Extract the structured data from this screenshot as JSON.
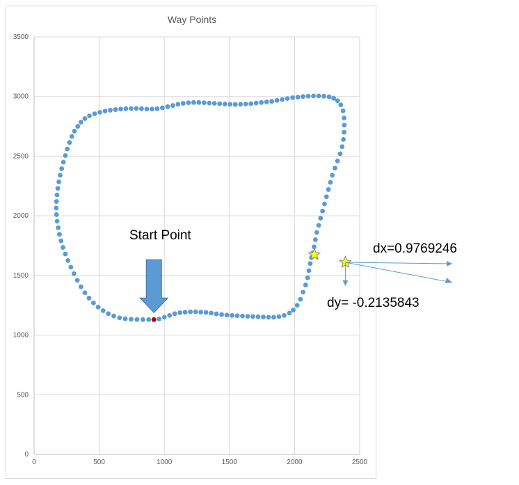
{
  "chart_data": {
    "type": "scatter",
    "title": "Way Points",
    "xlim": [
      0,
      2500
    ],
    "ylim": [
      0,
      3500
    ],
    "x_ticks": [
      "0",
      "500",
      "1000",
      "1500",
      "2000",
      "2500"
    ],
    "y_ticks": [
      "0",
      "500",
      "1000",
      "1500",
      "2000",
      "2500",
      "3000",
      "3500"
    ],
    "grid": true,
    "legend": "none",
    "series": [
      {
        "color": "#5b9bd5",
        "points": [
          [
            920,
            1130
          ],
          [
            960,
            1135
          ],
          [
            1000,
            1150
          ],
          [
            1040,
            1165
          ],
          [
            1080,
            1180
          ],
          [
            1120,
            1188
          ],
          [
            1160,
            1192
          ],
          [
            1200,
            1195
          ],
          [
            1240,
            1195
          ],
          [
            1280,
            1193
          ],
          [
            1320,
            1190
          ],
          [
            1360,
            1185
          ],
          [
            1400,
            1178
          ],
          [
            1440,
            1172
          ],
          [
            1480,
            1168
          ],
          [
            1520,
            1165
          ],
          [
            1560,
            1163
          ],
          [
            1600,
            1160
          ],
          [
            1640,
            1158
          ],
          [
            1680,
            1156
          ],
          [
            1720,
            1154
          ],
          [
            1760,
            1152
          ],
          [
            1800,
            1150
          ],
          [
            1840,
            1150
          ],
          [
            1880,
            1155
          ],
          [
            1920,
            1165
          ],
          [
            1960,
            1185
          ],
          [
            1990,
            1210
          ],
          [
            2020,
            1250
          ],
          [
            2045,
            1300
          ],
          [
            2065,
            1360
          ],
          [
            2085,
            1420
          ],
          [
            2100,
            1480
          ],
          [
            2110,
            1540
          ],
          [
            2120,
            1600
          ],
          [
            2130,
            1650
          ],
          [
            2140,
            1690
          ],
          [
            2150,
            1740
          ],
          [
            2160,
            1800
          ],
          [
            2170,
            1860
          ],
          [
            2185,
            1920
          ],
          [
            2200,
            1980
          ],
          [
            2215,
            2040
          ],
          [
            2230,
            2100
          ],
          [
            2245,
            2160
          ],
          [
            2260,
            2220
          ],
          [
            2275,
            2280
          ],
          [
            2290,
            2340
          ],
          [
            2310,
            2400
          ],
          [
            2330,
            2460
          ],
          [
            2350,
            2520
          ],
          [
            2365,
            2580
          ],
          [
            2375,
            2640
          ],
          [
            2380,
            2700
          ],
          [
            2382,
            2760
          ],
          [
            2380,
            2820
          ],
          [
            2372,
            2880
          ],
          [
            2355,
            2930
          ],
          [
            2330,
            2965
          ],
          [
            2300,
            2985
          ],
          [
            2265,
            2998
          ],
          [
            2225,
            3003
          ],
          [
            2185,
            3005
          ],
          [
            2145,
            3005
          ],
          [
            2105,
            3003
          ],
          [
            2065,
            3000
          ],
          [
            2025,
            2995
          ],
          [
            1985,
            2990
          ],
          [
            1945,
            2983
          ],
          [
            1905,
            2975
          ],
          [
            1865,
            2968
          ],
          [
            1825,
            2960
          ],
          [
            1785,
            2955
          ],
          [
            1745,
            2950
          ],
          [
            1705,
            2945
          ],
          [
            1665,
            2940
          ],
          [
            1625,
            2938
          ],
          [
            1585,
            2935
          ],
          [
            1545,
            2933
          ],
          [
            1505,
            2935
          ],
          [
            1465,
            2938
          ],
          [
            1425,
            2940
          ],
          [
            1385,
            2943
          ],
          [
            1345,
            2945
          ],
          [
            1305,
            2948
          ],
          [
            1265,
            2950
          ],
          [
            1225,
            2950
          ],
          [
            1185,
            2948
          ],
          [
            1145,
            2943
          ],
          [
            1105,
            2935
          ],
          [
            1065,
            2925
          ],
          [
            1025,
            2915
          ],
          [
            985,
            2905
          ],
          [
            945,
            2898
          ],
          [
            905,
            2895
          ],
          [
            865,
            2895
          ],
          [
            825,
            2898
          ],
          [
            785,
            2900
          ],
          [
            745,
            2900
          ],
          [
            705,
            2898
          ],
          [
            665,
            2895
          ],
          [
            625,
            2890
          ],
          [
            585,
            2885
          ],
          [
            545,
            2878
          ],
          [
            505,
            2868
          ],
          [
            465,
            2855
          ],
          [
            425,
            2838
          ],
          [
            390,
            2815
          ],
          [
            360,
            2785
          ],
          [
            335,
            2750
          ],
          [
            310,
            2710
          ],
          [
            290,
            2665
          ],
          [
            272,
            2615
          ],
          [
            255,
            2560
          ],
          [
            240,
            2505
          ],
          [
            225,
            2450
          ],
          [
            212,
            2395
          ],
          [
            200,
            2340
          ],
          [
            190,
            2285
          ],
          [
            182,
            2230
          ],
          [
            176,
            2175
          ],
          [
            172,
            2120
          ],
          [
            170,
            2065
          ],
          [
            172,
            2010
          ],
          [
            177,
            1955
          ],
          [
            185,
            1900
          ],
          [
            195,
            1845
          ],
          [
            207,
            1790
          ],
          [
            222,
            1735
          ],
          [
            240,
            1680
          ],
          [
            260,
            1625
          ],
          [
            282,
            1570
          ],
          [
            306,
            1515
          ],
          [
            332,
            1460
          ],
          [
            360,
            1405
          ],
          [
            390,
            1355
          ],
          [
            422,
            1310
          ],
          [
            456,
            1270
          ],
          [
            492,
            1235
          ],
          [
            530,
            1205
          ],
          [
            570,
            1180
          ],
          [
            612,
            1160
          ],
          [
            656,
            1145
          ],
          [
            700,
            1137
          ],
          [
            745,
            1133
          ],
          [
            790,
            1131
          ],
          [
            835,
            1130
          ],
          [
            880,
            1130
          ]
        ]
      }
    ],
    "start_point": [
      920,
      1130
    ],
    "star_point": [
      2152,
      1675
    ],
    "offset_star_point": [
      2390,
      1610
    ],
    "annotations": {
      "start_label": "Start Point",
      "dx_label": "dx=0.9769246",
      "dy_label": "dy= -0.2135843"
    },
    "colors": {
      "marker": "#5b9bd5",
      "start_marker": "#c00000",
      "star_fill": "#ffff00",
      "star_stroke": "#7f7f7f",
      "arrow_fill": "#5b9bd5",
      "arrow_stroke": "#41719c",
      "grid": "#d9d9d9"
    }
  }
}
